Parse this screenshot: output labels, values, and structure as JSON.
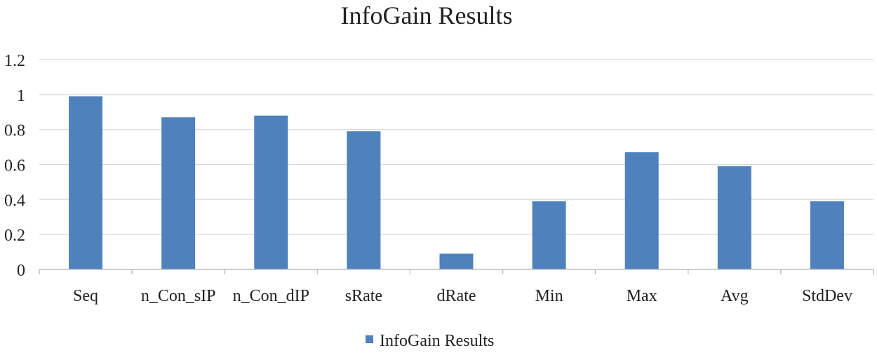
{
  "chart_data": {
    "type": "bar",
    "title": "InfoGain Results",
    "xlabel": "",
    "ylabel": "",
    "categories": [
      "Seq",
      "n_Con_sIP",
      "n_Con_dIP",
      "sRate",
      "dRate",
      "Min",
      "Max",
      "Avg",
      "StdDev"
    ],
    "series": [
      {
        "name": "InfoGain Results",
        "values": [
          0.99,
          0.87,
          0.88,
          0.79,
          0.09,
          0.39,
          0.67,
          0.59,
          0.39
        ],
        "color": "#4F81BD"
      }
    ],
    "ylim": [
      0,
      1.2
    ],
    "yticks": [
      "0",
      "0.2",
      "0.4",
      "0.6",
      "0.8",
      "1",
      "1.2"
    ],
    "grid": true,
    "legend_position": "bottom"
  }
}
